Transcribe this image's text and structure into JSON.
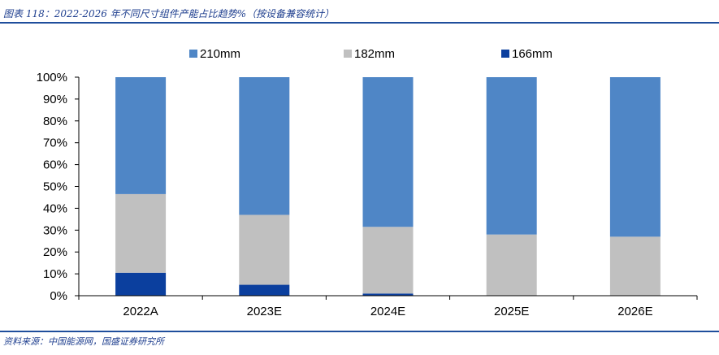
{
  "header": {
    "title": "图表 118：2022-2026 年不同尺寸组件产能占比趋势%（按设备兼容统计）"
  },
  "footer": {
    "source": "资料来源：中国能源网，国盛证券研究所"
  },
  "chart_data": {
    "type": "bar",
    "stacked": true,
    "categories": [
      "2022A",
      "2023E",
      "2024E",
      "2025E",
      "2026E"
    ],
    "series": [
      {
        "name": "166mm",
        "color": "#0b3f9e",
        "values": [
          10.5,
          5.0,
          1.0,
          0.0,
          0.0
        ]
      },
      {
        "name": "182mm",
        "color": "#c0c0c0",
        "values": [
          36.0,
          32.0,
          30.5,
          28.0,
          27.0
        ]
      },
      {
        "name": "210mm",
        "color": "#4f86c6",
        "values": [
          53.5,
          63.0,
          68.5,
          72.0,
          73.0
        ]
      }
    ],
    "legend_order": [
      "210mm",
      "182mm",
      "166mm"
    ],
    "legend_position": "top",
    "ylim": [
      0,
      100
    ],
    "yticks": [
      "0%",
      "10%",
      "20%",
      "30%",
      "40%",
      "50%",
      "60%",
      "70%",
      "80%",
      "90%",
      "100%"
    ],
    "grid": false,
    "xlabel": "",
    "ylabel": ""
  }
}
